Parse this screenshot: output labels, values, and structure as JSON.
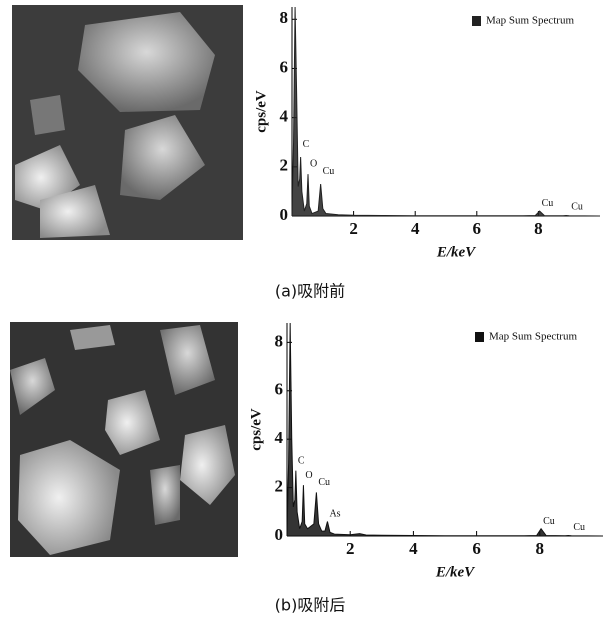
{
  "chart_data": [
    {
      "type": "line",
      "caption": "(a)吸附前",
      "xlabel": "E/keV",
      "ylabel": "cps/eV",
      "series": [
        {
          "name": "Map Sum Spectrum",
          "color": "#222222",
          "x": [
            0,
            0.05,
            0.1,
            0.15,
            0.2,
            0.25,
            0.28,
            0.32,
            0.4,
            0.48,
            0.52,
            0.56,
            0.65,
            0.85,
            0.93,
            1.0,
            1.1,
            1.5,
            2.0,
            3.0,
            4,
            5,
            6,
            7.5,
            7.9,
            8.04,
            8.2,
            8.8,
            8.9,
            9.0,
            10
          ],
          "values": [
            0,
            3,
            8.5,
            5,
            1.2,
            1.5,
            2.4,
            1.0,
            0.2,
            0.5,
            1.7,
            0.4,
            0.1,
            0.2,
            1.3,
            0.3,
            0.1,
            0.05,
            0.03,
            0.02,
            0.01,
            0.01,
            0.01,
            0.01,
            0.02,
            0.2,
            0.01,
            0.01,
            0.02,
            0.01,
            0
          ]
        }
      ],
      "annotations": [
        {
          "text": "C",
          "x": 0.28,
          "y": 2.9
        },
        {
          "text": "O",
          "x": 0.52,
          "y": 2.1
        },
        {
          "text": "Cu",
          "x": 0.93,
          "y": 1.8
        },
        {
          "text": "Cu",
          "x": 8.04,
          "y": 0.5
        },
        {
          "text": "Cu",
          "x": 9.0,
          "y": 0.35
        }
      ],
      "xlim": [
        0,
        10
      ],
      "ylim": [
        0,
        8.5
      ],
      "xticks": [
        2,
        4,
        6,
        8
      ],
      "yticks": [
        0,
        2,
        4,
        6,
        8
      ]
    },
    {
      "type": "line",
      "caption": "(b)吸附后",
      "xlabel": "E/keV",
      "ylabel": "cps/eV",
      "series": [
        {
          "name": "Map Sum Spectrum",
          "color": "#111111",
          "x": [
            0,
            0.05,
            0.1,
            0.15,
            0.2,
            0.25,
            0.28,
            0.32,
            0.4,
            0.48,
            0.52,
            0.56,
            0.65,
            0.85,
            0.93,
            1.0,
            1.1,
            1.2,
            1.28,
            1.36,
            1.5,
            2.0,
            2.3,
            2.5,
            3,
            4,
            5,
            6,
            7.5,
            7.9,
            8.04,
            8.2,
            8.8,
            8.9,
            9.0,
            10
          ],
          "values": [
            0,
            3,
            8.8,
            4,
            1.2,
            1.5,
            2.7,
            1.0,
            0.3,
            0.6,
            2.1,
            0.5,
            0.3,
            0.5,
            1.8,
            0.5,
            0.2,
            0.2,
            0.6,
            0.15,
            0.08,
            0.05,
            0.1,
            0.04,
            0.03,
            0.02,
            0.01,
            0.01,
            0.01,
            0.02,
            0.3,
            0.02,
            0.01,
            0.02,
            0.01,
            0
          ]
        }
      ],
      "annotations": [
        {
          "text": "C",
          "x": 0.28,
          "y": 3.1
        },
        {
          "text": "O",
          "x": 0.52,
          "y": 2.5
        },
        {
          "text": "Cu",
          "x": 0.93,
          "y": 2.2
        },
        {
          "text": "As",
          "x": 1.28,
          "y": 0.9
        },
        {
          "text": "Cu",
          "x": 8.04,
          "y": 0.6
        },
        {
          "text": "Cu",
          "x": 9.0,
          "y": 0.35
        }
      ],
      "xlim": [
        0,
        10
      ],
      "ylim": [
        0,
        8.8
      ],
      "xticks": [
        2,
        4,
        6,
        8
      ],
      "yticks": [
        0,
        2,
        4,
        6,
        8
      ]
    }
  ]
}
